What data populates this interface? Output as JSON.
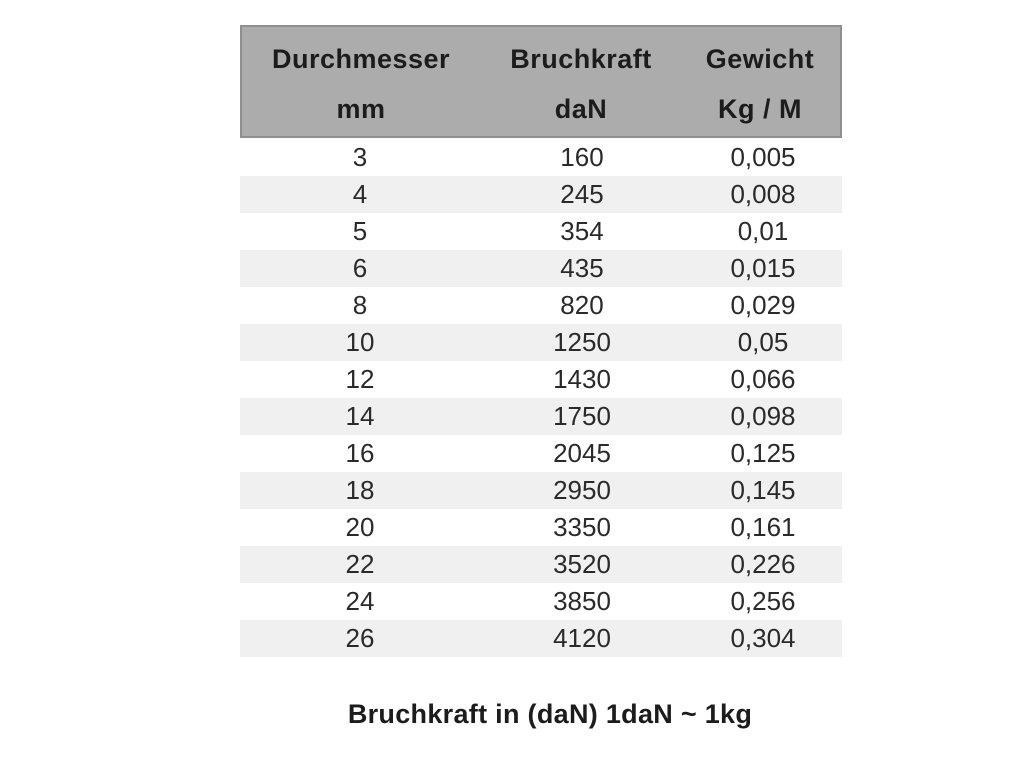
{
  "colors": {
    "page_bg": "#ffffff",
    "header_bg": "#acacac",
    "header_border": "#8f8f8f",
    "row_alt_bg": "#f0f0f0",
    "text": "#1c1c1c"
  },
  "table": {
    "header": {
      "col1_name": "Durchmesser",
      "col2_name": "Bruchkraft",
      "col3_name": "Gewicht",
      "col1_unit": "mm",
      "col2_unit": "daN",
      "col3_unit": "Kg / M"
    },
    "rows": [
      [
        "3",
        "160",
        "0,005"
      ],
      [
        "4",
        "245",
        "0,008"
      ],
      [
        "5",
        "354",
        "0,01"
      ],
      [
        "6",
        "435",
        "0,015"
      ],
      [
        "8",
        "820",
        "0,029"
      ],
      [
        "10",
        "1250",
        "0,05"
      ],
      [
        "12",
        "1430",
        "0,066"
      ],
      [
        "14",
        "1750",
        "0,098"
      ],
      [
        "16",
        "2045",
        "0,125"
      ],
      [
        "18",
        "2950",
        "0,145"
      ],
      [
        "20",
        "3350",
        "0,161"
      ],
      [
        "22",
        "3520",
        "0,226"
      ],
      [
        "24",
        "3850",
        "0,256"
      ],
      [
        "26",
        "4120",
        "0,304"
      ]
    ]
  },
  "footer": {
    "caption": "Bruchkraft in (daN) 1daN ~ 1kg"
  },
  "chart_data": {
    "type": "table",
    "title": "",
    "columns": [
      {
        "name": "Durchmesser",
        "unit": "mm"
      },
      {
        "name": "Bruchkraft",
        "unit": "daN"
      },
      {
        "name": "Gewicht",
        "unit": "Kg / M"
      }
    ],
    "durchmesser_mm": [
      3,
      4,
      5,
      6,
      8,
      10,
      12,
      14,
      16,
      18,
      20,
      22,
      24,
      26
    ],
    "bruchkraft_daN": [
      160,
      245,
      354,
      435,
      820,
      1250,
      1430,
      1750,
      2045,
      2950,
      3350,
      3520,
      3850,
      4120
    ],
    "gewicht_kg_per_m": [
      0.005,
      0.008,
      0.01,
      0.015,
      0.029,
      0.05,
      0.066,
      0.098,
      0.125,
      0.145,
      0.161,
      0.226,
      0.256,
      0.304
    ],
    "caption": "Bruchkraft in (daN) 1daN ~ 1kg",
    "layout": "header shaded gray, zebra-striped body rows, caption centered below"
  }
}
